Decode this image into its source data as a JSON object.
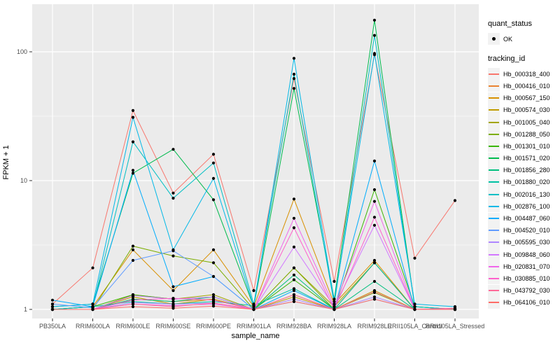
{
  "chart_data": {
    "type": "line",
    "xlabel": "sample_name",
    "ylabel": "FPKM + 1",
    "yscale": "log10",
    "ytick_labels": [
      "1",
      "10",
      "100"
    ],
    "ytick_values": [
      1,
      10,
      100
    ],
    "yminor_values": [
      3.162,
      31.62
    ],
    "grid": "on",
    "legend_position": "right",
    "panel_bg": "#EBEBEB",
    "grid_color": "#FFFFFF",
    "tick_label_color": "#4D4D4D",
    "point_color": "#000000",
    "categories": [
      "PB350LA",
      "RRIM600LA",
      "RRIM600LE",
      "RRIM600SE",
      "RRIM600PE",
      "RRIM901LA",
      "RRIM928BA",
      "RRIM928LA",
      "RRIM928LE",
      "RRII105LA_Control",
      "RRII105LA_Stressed"
    ],
    "series": [
      {
        "id": "Hb_000318_400",
        "color": "#F8766D",
        "values": [
          1.1,
          2.1,
          35,
          8,
          16,
          1.4,
          62,
          1.65,
          95,
          2.5,
          7
        ]
      },
      {
        "id": "Hb_000416_010",
        "color": "#EA8331",
        "values": [
          1,
          1,
          1.2,
          1.15,
          1.2,
          1,
          1.3,
          1,
          2.3,
          1,
          1
        ]
      },
      {
        "id": "Hb_000567_150",
        "color": "#D89000",
        "values": [
          1,
          1.05,
          2.9,
          1.4,
          2.9,
          1.05,
          7.2,
          1.1,
          2.4,
          1,
          1
        ]
      },
      {
        "id": "Hb_000574_030",
        "color": "#C09B00",
        "values": [
          1,
          1,
          1.25,
          1.1,
          1.2,
          1,
          1.25,
          1,
          1.4,
          1,
          1
        ]
      },
      {
        "id": "Hb_001005_040",
        "color": "#A3A500",
        "values": [
          1,
          1,
          1.3,
          1.2,
          1.3,
          1,
          2.1,
          1.05,
          2.3,
          1,
          1
        ]
      },
      {
        "id": "Hb_001288_050",
        "color": "#7CAE00",
        "values": [
          1,
          1,
          3.1,
          2.6,
          2.3,
          1,
          2.1,
          1,
          1.35,
          1,
          1
        ]
      },
      {
        "id": "Hb_001301_010",
        "color": "#39B600",
        "values": [
          1,
          1.05,
          1.3,
          1.2,
          1.25,
          1,
          1.7,
          1,
          8.5,
          1.05,
          1
        ]
      },
      {
        "id": "Hb_001571_020",
        "color": "#00BB4E",
        "values": [
          1.05,
          1.1,
          11.4,
          17.5,
          7.1,
          1.05,
          52,
          1.2,
          176,
          1.05,
          1
        ]
      },
      {
        "id": "Hb_001856_280",
        "color": "#00BF7D",
        "values": [
          1,
          1,
          1.2,
          1.15,
          1.25,
          1,
          1.85,
          1,
          1.65,
          1,
          1
        ]
      },
      {
        "id": "Hb_001880_020",
        "color": "#00C1A3",
        "values": [
          1,
          1.05,
          1.15,
          1.1,
          1.15,
          1.07,
          1.45,
          1,
          2.3,
          1,
          1
        ]
      },
      {
        "id": "Hb_002016_130",
        "color": "#00BFC4",
        "values": [
          1,
          1.05,
          20,
          7.3,
          13.7,
          1.1,
          67,
          1.1,
          134,
          1.05,
          1
        ]
      },
      {
        "id": "Hb_002876_100",
        "color": "#00B8E7",
        "values": [
          1.05,
          1.1,
          31,
          2.9,
          10.4,
          1.05,
          89,
          1.15,
          97,
          1.1,
          1.05
        ]
      },
      {
        "id": "Hb_004487_060",
        "color": "#00ACFC",
        "values": [
          1.18,
          1.05,
          12,
          1.5,
          1.8,
          1,
          1.4,
          1,
          14.2,
          1,
          1
        ]
      },
      {
        "id": "Hb_004520_010",
        "color": "#619CFF",
        "values": [
          1.1,
          1.03,
          2.4,
          2.85,
          1.8,
          1,
          1.15,
          1,
          1.2,
          1,
          1
        ]
      },
      {
        "id": "Hb_005595_030",
        "color": "#AE87FF",
        "values": [
          1,
          1,
          1.13,
          1.1,
          1.12,
          1,
          1.2,
          1,
          1.25,
          1,
          1
        ]
      },
      {
        "id": "Hb_009848_060",
        "color": "#D277FF",
        "values": [
          1,
          1,
          1.28,
          1.2,
          1.25,
          1,
          3.05,
          1.05,
          4.5,
          1,
          1
        ]
      },
      {
        "id": "Hb_020831_070",
        "color": "#F066EA",
        "values": [
          1,
          1,
          1.1,
          1.07,
          1.1,
          1,
          5.1,
          1.05,
          6.9,
          1,
          1.02
        ]
      },
      {
        "id": "Hb_030885_010",
        "color": "#FF61CC",
        "values": [
          1,
          1,
          1.18,
          1.22,
          1.18,
          1,
          4.3,
          1,
          5.2,
          1,
          1.02
        ]
      },
      {
        "id": "Hb_043792_030",
        "color": "#FF6A98",
        "values": [
          1,
          1,
          1.1,
          1.05,
          1.12,
          1,
          1.3,
          1,
          1.37,
          1,
          1.02
        ]
      },
      {
        "id": "Hb_064106_010",
        "color": "#FF6C67",
        "values": [
          1,
          1,
          1.05,
          1.02,
          1.06,
          1,
          1.15,
          1,
          1.2,
          1,
          1
        ]
      }
    ]
  },
  "legend": {
    "quant_status": {
      "title": "quant_status",
      "items": [
        {
          "label": "OK"
        }
      ]
    },
    "tracking_id": {
      "title": "tracking_id"
    }
  }
}
